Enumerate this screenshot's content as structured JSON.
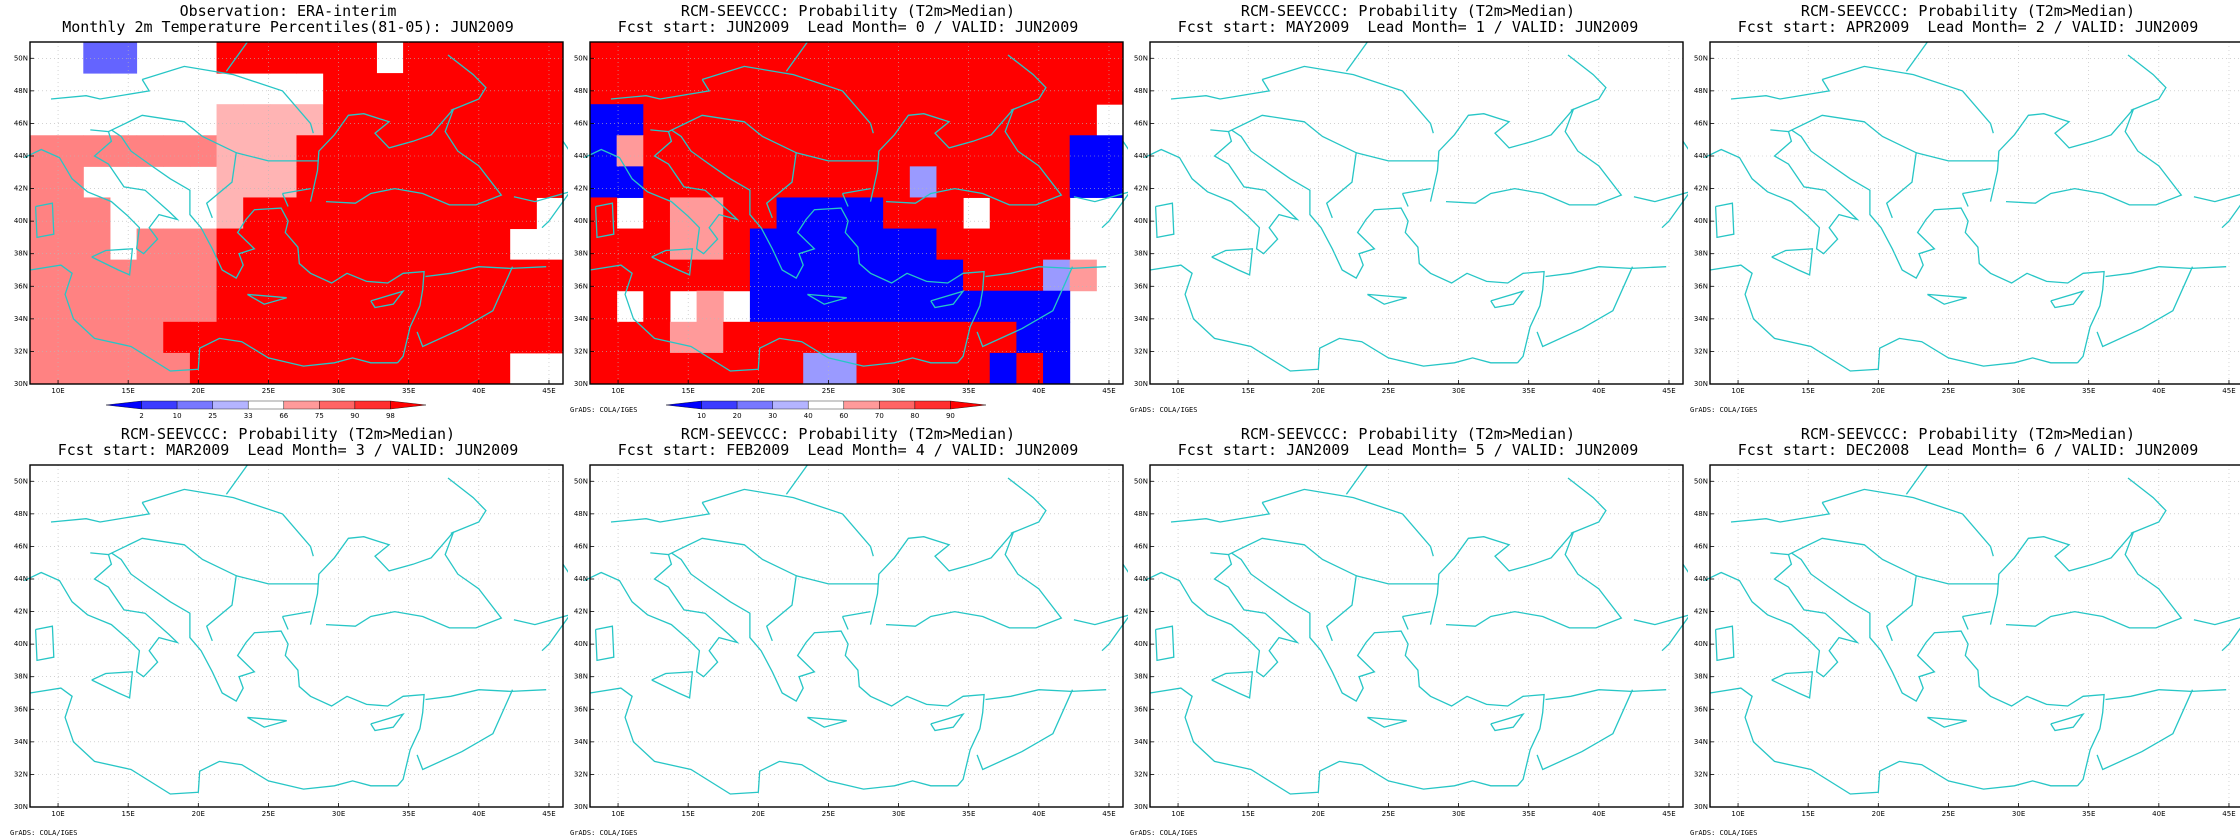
{
  "panels": [
    {
      "id": "obs",
      "title1": "Observation: ERA-interim",
      "title2": "Monthly 2m Temperature Percentiles(81-05): JUN2009",
      "colorbar": "obs",
      "grid": "obs"
    },
    {
      "id": "lead0",
      "title1": "RCM-SEEVCCC: Probability (T2m>Median)",
      "title2": "Fcst start: JUN2009  Lead Month= 0 / VALID: JUN2009",
      "colorbar": "prob",
      "grid": "lead0"
    },
    {
      "id": "lead1",
      "title1": "RCM-SEEVCCC: Probability (T2m>Median)",
      "title2": "Fcst start: MAY2009  Lead Month= 1 / VALID: JUN2009"
    },
    {
      "id": "lead2",
      "title1": "RCM-SEEVCCC: Probability (T2m>Median)",
      "title2": "Fcst start: APR2009  Lead Month= 2 / VALID: JUN2009"
    },
    {
      "id": "lead3",
      "title1": "RCM-SEEVCCC: Probability (T2m>Median)",
      "title2": "Fcst start: MAR2009  Lead Month= 3 / VALID: JUN2009"
    },
    {
      "id": "lead4",
      "title1": "RCM-SEEVCCC: Probability (T2m>Median)",
      "title2": "Fcst start: FEB2009  Lead Month= 4 / VALID: JUN2009"
    },
    {
      "id": "lead5",
      "title1": "RCM-SEEVCCC: Probability (T2m>Median)",
      "title2": "Fcst start: JAN2009  Lead Month= 5 / VALID: JUN2009"
    },
    {
      "id": "lead6",
      "title1": "RCM-SEEVCCC: Probability (T2m>Median)",
      "title2": "Fcst start: DEC2008  Lead Month= 6 / VALID: JUN2009"
    }
  ],
  "axis": {
    "lat_labels": [
      "30N",
      "32N",
      "34N",
      "36N",
      "38N",
      "40N",
      "42N",
      "44N",
      "46N",
      "48N",
      "50N"
    ],
    "lon_labels": [
      "10E",
      "15E",
      "20E",
      "25E",
      "30E",
      "35E",
      "40E",
      "45E"
    ],
    "lat_range": [
      30,
      51
    ],
    "lon_range": [
      8,
      46
    ]
  },
  "credit": "GrADS: COLA/IGES",
  "colorbars": {
    "obs": {
      "labels": [
        "2",
        "10",
        "25",
        "33",
        "66",
        "75",
        "90",
        "98"
      ],
      "colors": [
        "#0000ff",
        "#3c3cff",
        "#7878ff",
        "#b4b4ff",
        "#ffffff",
        "#ff9a9a",
        "#ff6464",
        "#ff3030",
        "#ff0000"
      ]
    },
    "prob": {
      "labels": [
        "10",
        "20",
        "30",
        "40",
        "60",
        "70",
        "80",
        "90"
      ],
      "colors": [
        "#0000ff",
        "#3c3cff",
        "#7878ff",
        "#b4b4ff",
        "#ffffff",
        "#ff9a9a",
        "#ff6464",
        "#ff3030",
        "#ff0000"
      ]
    }
  },
  "colors": {
    "coast": "#27c6c6",
    "frame": "#000000",
    "grid": "#b8b8b8"
  },
  "grids": {
    "obs": {
      "rows": [
        "..BB...RRRRRR.RRRRRR",
        "...........RRRRRRRRR",
        ".......PPPPRRRRRRRRR",
        "LLLLLLLPPPRRRRRRRRRR",
        "LL.....PPPRRRRRRRRRR",
        "LLL....PRRRRRRRRRRR.",
        "LLL.LLLRRRRRRRRRRR..",
        "LLLLLLLRRRRRRRRRRRRR",
        "LLLLLLLRRRRRRRRRRRRR",
        "LLLLLRRRRRRRRRRRRRRR",
        "LLLLLLRRRRRRRRRRRR.."
      ],
      "legend": {
        "B": "#6464ff",
        "P": "#ffb4b4",
        "L": "#ff8282",
        "R": "#ff0000",
        ".": "#ffffff"
      }
    },
    "lead0": {
      "rows": [
        "RRRRRRRRRRRRRRRRRRRR",
        "RRRRRRRRRRRRRRRRRRRR",
        "BBRRRRRRRRRRRRRRRRR.",
        "BLRRRRRRRRRRRRRRRRBB",
        "BBRRRRRRRRRRKRRRRRBB",
        "R.RLLRRBBBBRRR.RRR..",
        "RRRLLRBBBBBBBRRRRR..",
        "RRRRRRBBBBBBBBRRRKL.",
        "R.R.L.BBBBBBBBBBBB..",
        "RRRLLRRRRRRRRRRRBB..",
        "RRRRRRRRKKRRRRRBRB.."
      ],
      "legend": {
        "B": "#0000ff",
        "K": "#9a9aff",
        "L": "#ff9a9a",
        "R": "#ff0000",
        ".": "#ffffff"
      }
    }
  }
}
